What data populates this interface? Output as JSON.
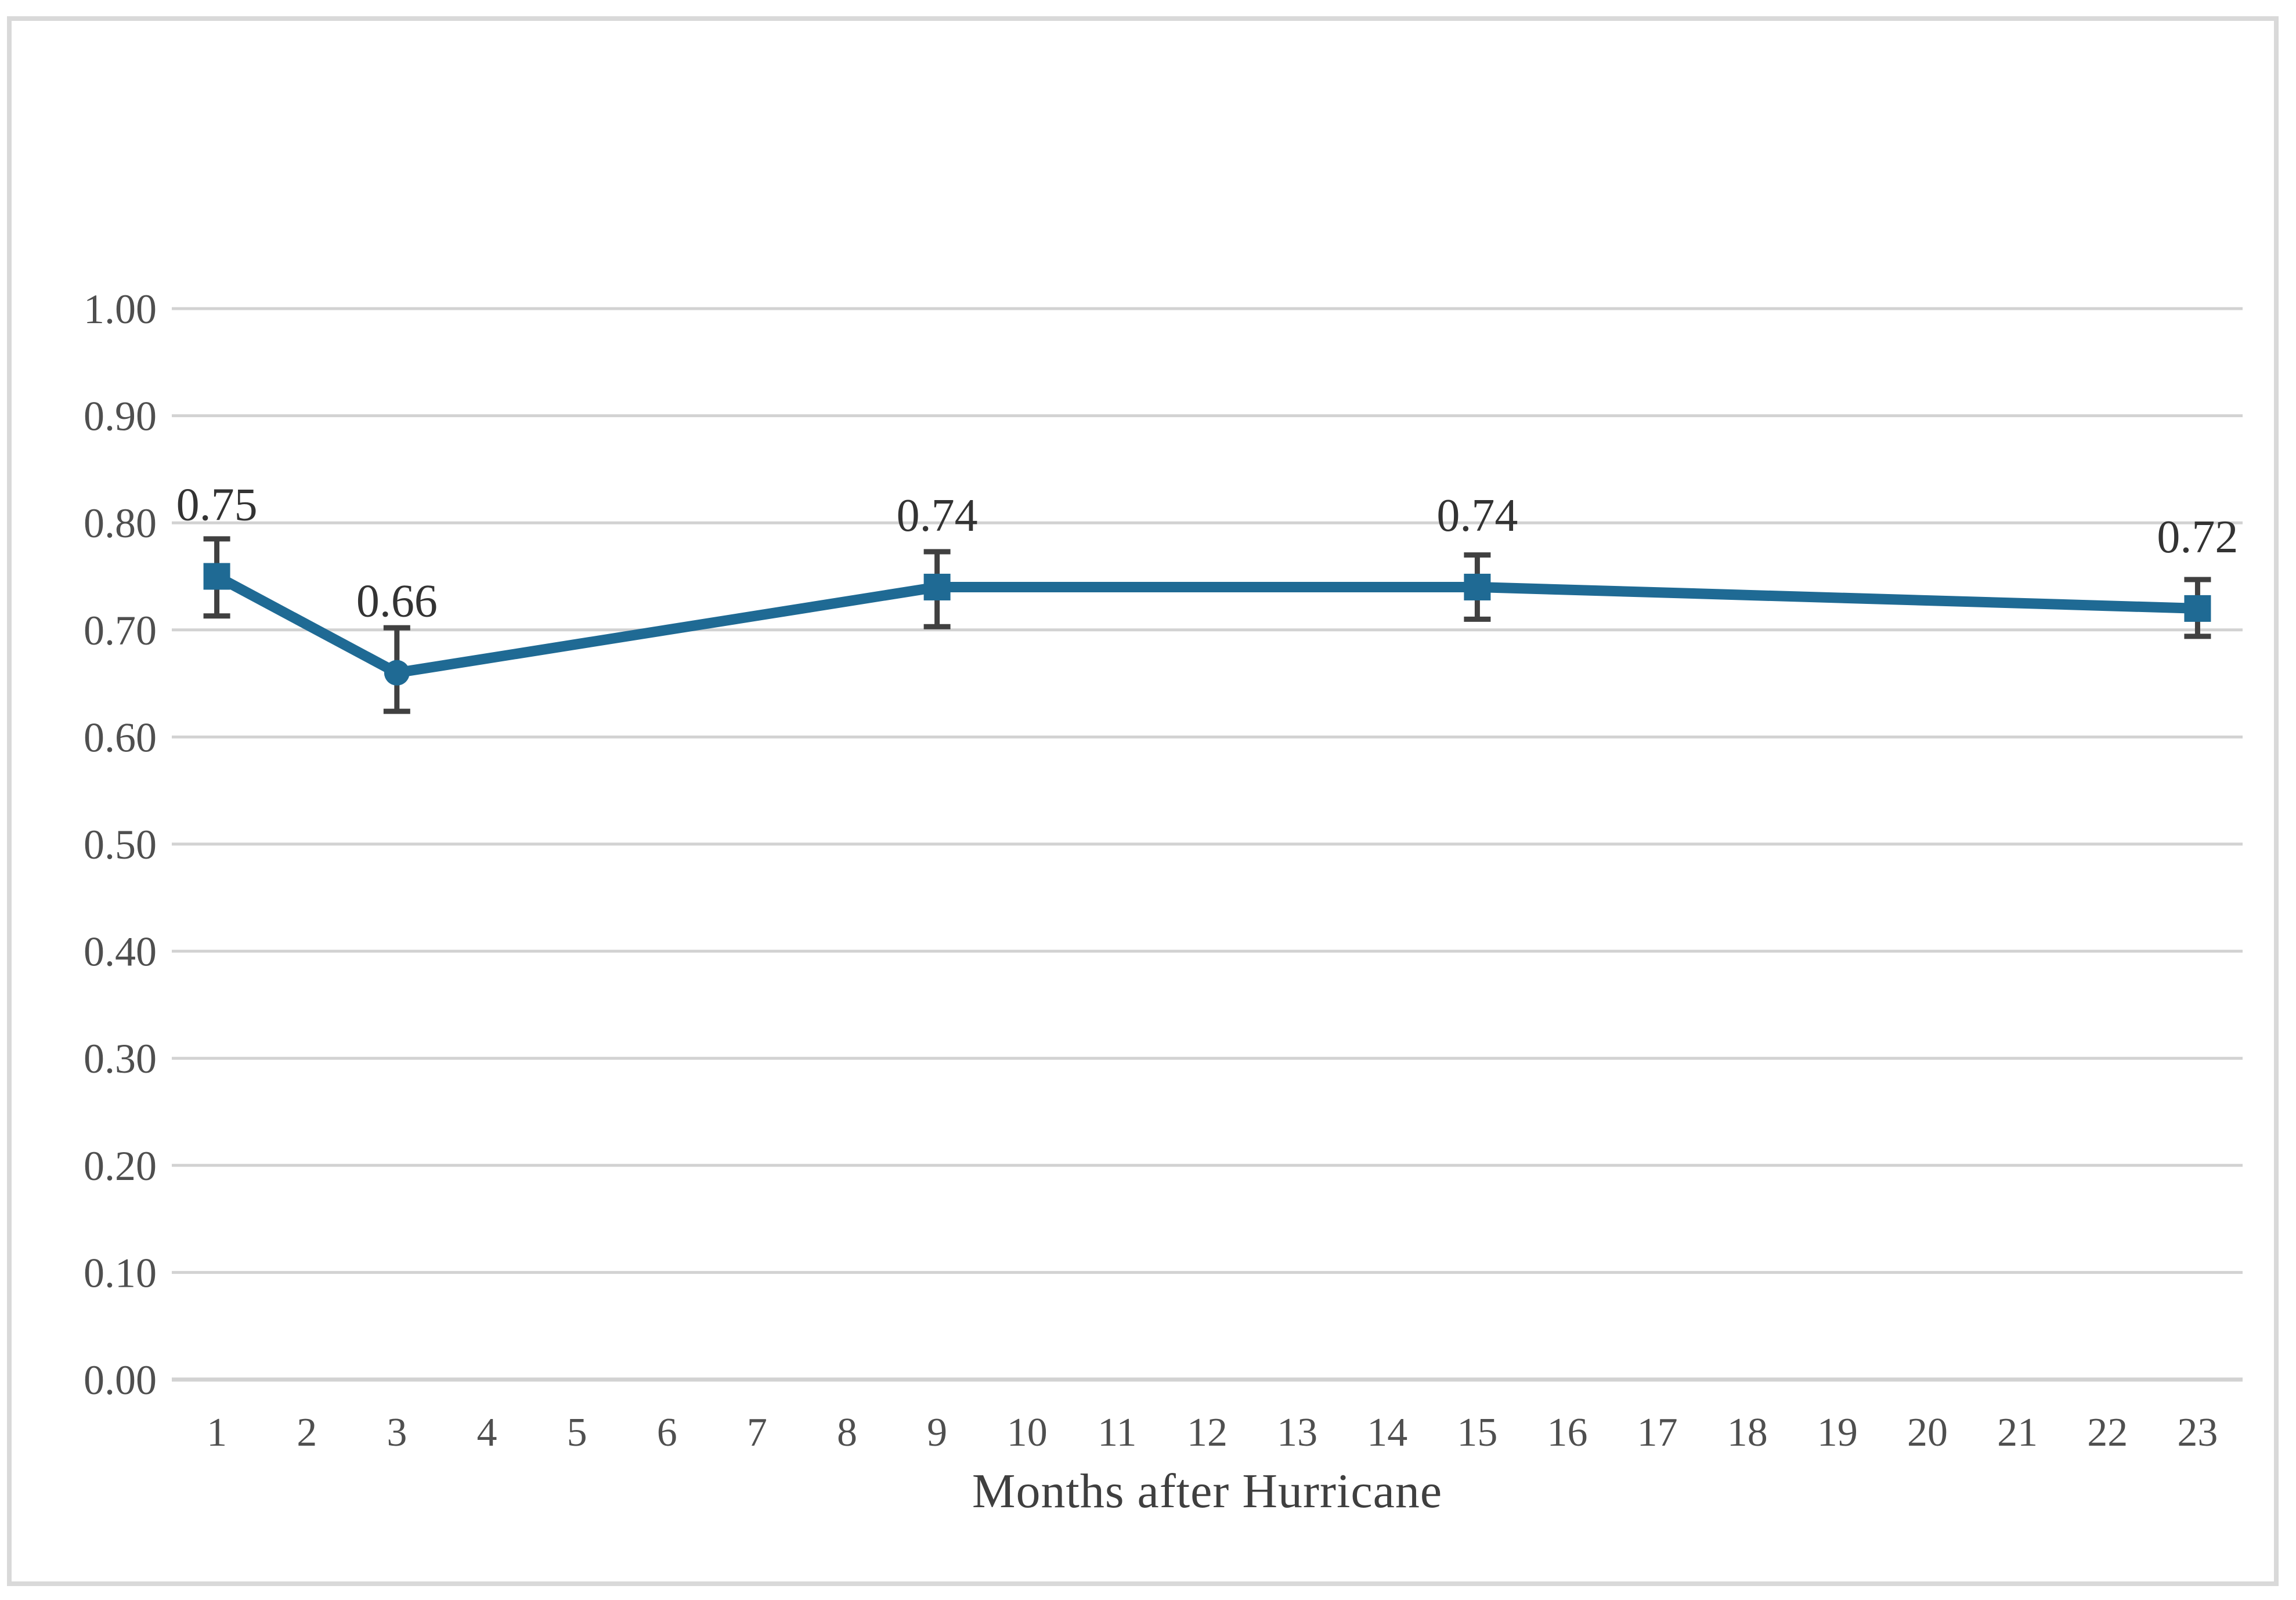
{
  "figure": {
    "background": "#ffffff",
    "border_color": "#d9d9d9"
  },
  "chart_data": {
    "type": "line",
    "title": "",
    "xlabel": "Months after Hurricane",
    "ylabel": "",
    "x_categories": [
      "1",
      "2",
      "3",
      "4",
      "5",
      "6",
      "7",
      "8",
      "9",
      "10",
      "11",
      "12",
      "13",
      "14",
      "15",
      "16",
      "17",
      "18",
      "19",
      "20",
      "21",
      "22",
      "23"
    ],
    "ylim": [
      0.0,
      1.0
    ],
    "ytick_step": 0.1,
    "ytick_labels": [
      "1.00",
      "0.90",
      "0.80",
      "0.70",
      "0.60",
      "0.50",
      "0.40",
      "0.30",
      "0.20",
      "0.10",
      "0.00"
    ],
    "grid": "horizontal",
    "legend": false,
    "line_color": "#1f6a94",
    "error_bar_color": "#404040",
    "gridline_color": "#d2d2d2",
    "tick_label_color": "#4f4f4f",
    "data_label_color": "#333333",
    "series": [
      {
        "points": [
          {
            "month": 1,
            "value": 0.75,
            "label": "0.75",
            "marker": "square",
            "err_up": 0.035,
            "err_down": 0.037
          },
          {
            "month": 3,
            "value": 0.66,
            "label": "0.66",
            "marker": "circle",
            "err_up": 0.042,
            "err_down": 0.036
          },
          {
            "month": 9,
            "value": 0.74,
            "label": "0.74",
            "marker": "square",
            "err_up": 0.033,
            "err_down": 0.037
          },
          {
            "month": 15,
            "value": 0.74,
            "label": "0.74",
            "marker": "square",
            "err_up": 0.03,
            "err_down": 0.03
          },
          {
            "month": 23,
            "value": 0.72,
            "label": "0.72",
            "marker": "square",
            "err_up": 0.027,
            "err_down": 0.026
          }
        ]
      }
    ]
  }
}
